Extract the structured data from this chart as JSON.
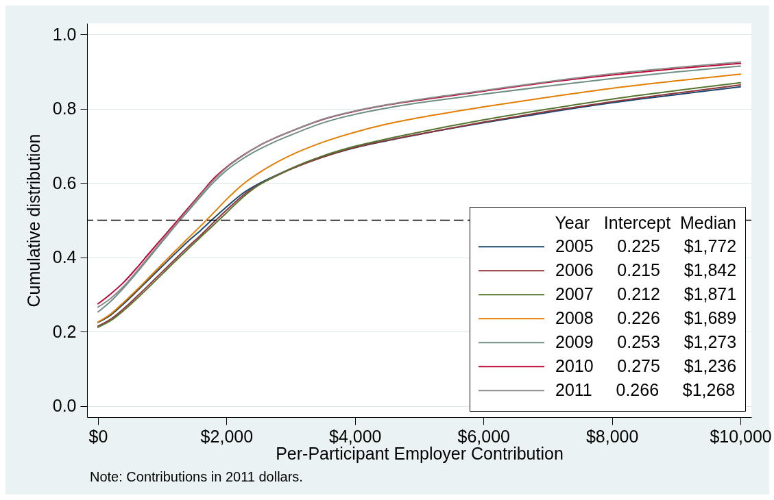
{
  "chart_data": {
    "type": "line",
    "xlabel": "Per-Participant Employer Contribution",
    "ylabel": "Cumulative distribution",
    "legend_title": "Year Intercept Median",
    "annotations": [
      "Note: Contributions in 2011 dollars."
    ],
    "x": [
      0,
      200,
      400,
      600,
      800,
      1000,
      1200,
      1400,
      1600,
      1800,
      2000,
      2250,
      2500,
      2750,
      3000,
      3500,
      4000,
      4500,
      5000,
      6000,
      7000,
      8000,
      9000,
      10000
    ],
    "series": [
      {
        "name": "2005 0.225 $1,772",
        "color": "#1a476f",
        "values": [
          0.225,
          0.245,
          0.275,
          0.308,
          0.342,
          0.376,
          0.41,
          0.443,
          0.473,
          0.505,
          0.536,
          0.572,
          0.598,
          0.619,
          0.638,
          0.67,
          0.695,
          0.714,
          0.731,
          0.762,
          0.79,
          0.816,
          0.838,
          0.859
        ]
      },
      {
        "name": "2006 0.215 $1,842",
        "color": "#90353b",
        "values": [
          0.215,
          0.234,
          0.262,
          0.294,
          0.327,
          0.361,
          0.395,
          0.428,
          0.46,
          0.494,
          0.527,
          0.566,
          0.595,
          0.617,
          0.637,
          0.67,
          0.696,
          0.715,
          0.732,
          0.764,
          0.793,
          0.819,
          0.842,
          0.864
        ]
      },
      {
        "name": "2007 0.212 $1,871",
        "color": "#55752f",
        "values": [
          0.212,
          0.23,
          0.257,
          0.288,
          0.321,
          0.355,
          0.389,
          0.422,
          0.455,
          0.487,
          0.52,
          0.561,
          0.594,
          0.618,
          0.639,
          0.673,
          0.699,
          0.719,
          0.737,
          0.77,
          0.799,
          0.826,
          0.849,
          0.87
        ]
      },
      {
        "name": "2008 0.226 $1,689",
        "color": "#e37e00",
        "values": [
          0.226,
          0.248,
          0.279,
          0.312,
          0.347,
          0.382,
          0.417,
          0.451,
          0.485,
          0.52,
          0.556,
          0.596,
          0.627,
          0.653,
          0.675,
          0.71,
          0.737,
          0.759,
          0.776,
          0.805,
          0.831,
          0.855,
          0.875,
          0.893
        ]
      },
      {
        "name": "2009 0.253 $1,273",
        "color": "#6e8e84",
        "values": [
          0.253,
          0.282,
          0.318,
          0.358,
          0.4,
          0.442,
          0.484,
          0.524,
          0.564,
          0.602,
          0.634,
          0.665,
          0.69,
          0.711,
          0.729,
          0.762,
          0.785,
          0.802,
          0.816,
          0.839,
          0.861,
          0.881,
          0.899,
          0.915
        ]
      },
      {
        "name": "2010 0.275 $1,236",
        "color": "#c10534",
        "values": [
          0.275,
          0.302,
          0.333,
          0.371,
          0.412,
          0.452,
          0.492,
          0.532,
          0.572,
          0.612,
          0.643,
          0.674,
          0.7,
          0.721,
          0.739,
          0.771,
          0.793,
          0.81,
          0.823,
          0.847,
          0.871,
          0.891,
          0.908,
          0.922
        ]
      },
      {
        "name": "2011 0.266 $1,268",
        "color": "#8c8c8c",
        "values": [
          0.266,
          0.29,
          0.322,
          0.362,
          0.404,
          0.446,
          0.487,
          0.528,
          0.569,
          0.608,
          0.641,
          0.673,
          0.7,
          0.721,
          0.739,
          0.772,
          0.794,
          0.811,
          0.825,
          0.849,
          0.873,
          0.894,
          0.911,
          0.926
        ]
      }
    ],
    "xlim": [
      -170,
      10170
    ],
    "ylim": [
      -0.03,
      1.03
    ],
    "xticks": [
      {
        "value": 0,
        "label": "$0"
      },
      {
        "value": 2000,
        "label": "$2,000"
      },
      {
        "value": 4000,
        "label": "$4,000"
      },
      {
        "value": 6000,
        "label": "$6,000"
      },
      {
        "value": 8000,
        "label": "$8,000"
      },
      {
        "value": 10000,
        "label": "$10,000"
      }
    ],
    "yticks": [
      {
        "value": 0,
        "label": "0.0"
      },
      {
        "value": 0.2,
        "label": "0.2"
      },
      {
        "value": 0.4,
        "label": "0.4"
      },
      {
        "value": 0.6,
        "label": "0.6"
      },
      {
        "value": 0.8,
        "label": "0.8"
      },
      {
        "value": 1,
        "label": "1.0"
      }
    ],
    "grid": "y",
    "legend": "bottom right",
    "ref_lines": [
      {
        "axis": "y",
        "value": 0.5,
        "line_style": "dashed",
        "color": "#000000"
      }
    ]
  }
}
